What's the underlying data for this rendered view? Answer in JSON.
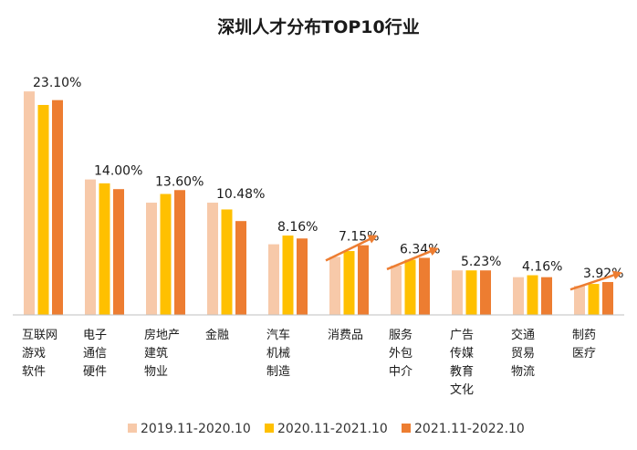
{
  "chart_data": {
    "type": "bar",
    "title": "深圳人才分布TOP10行业",
    "xlabel": "",
    "ylabel": "",
    "ylim": [
      0,
      25
    ],
    "grid": false,
    "legend_position": "bottom",
    "categories": [
      [
        "互联网",
        "游戏",
        "软件"
      ],
      [
        "电子",
        "通信",
        "硬件"
      ],
      [
        "房地产",
        "建筑",
        "物业"
      ],
      [
        "金融"
      ],
      [
        "汽车",
        "机械",
        "制造"
      ],
      [
        "消费品"
      ],
      [
        "服务",
        "外包",
        "中介"
      ],
      [
        "广告",
        "传媒",
        "教育",
        "文化"
      ],
      [
        "交通",
        "贸易",
        "物流"
      ],
      [
        "制药",
        "医疗"
      ]
    ],
    "series": [
      {
        "name": "2019.11-2020.10",
        "color": "#F7C9A9",
        "values": [
          23.1,
          14.0,
          11.6,
          11.6,
          7.3,
          6.0,
          5.1,
          4.6,
          3.9,
          3.0
        ]
      },
      {
        "name": "2020.11-2021.10",
        "color": "#FFC000",
        "values": [
          21.7,
          13.6,
          12.5,
          10.9,
          8.2,
          6.6,
          5.7,
          4.6,
          4.1,
          3.2
        ]
      },
      {
        "name": "2021.11-2022.10",
        "color": "#ED7D31",
        "values": [
          22.2,
          13.0,
          12.9,
          9.7,
          7.9,
          7.2,
          5.9,
          4.6,
          3.9,
          3.4
        ]
      }
    ],
    "data_labels": [
      "23.10%",
      "14.00%",
      "13.60%",
      "10.48%",
      "8.16%",
      "7.15%",
      "6.34%",
      "5.23%",
      "4.16%",
      "3.92%"
    ],
    "trend_arrows_on": [
      "消费品",
      "服务外包中介",
      "制药医疗"
    ],
    "arrow_color": "#ED7D31"
  }
}
